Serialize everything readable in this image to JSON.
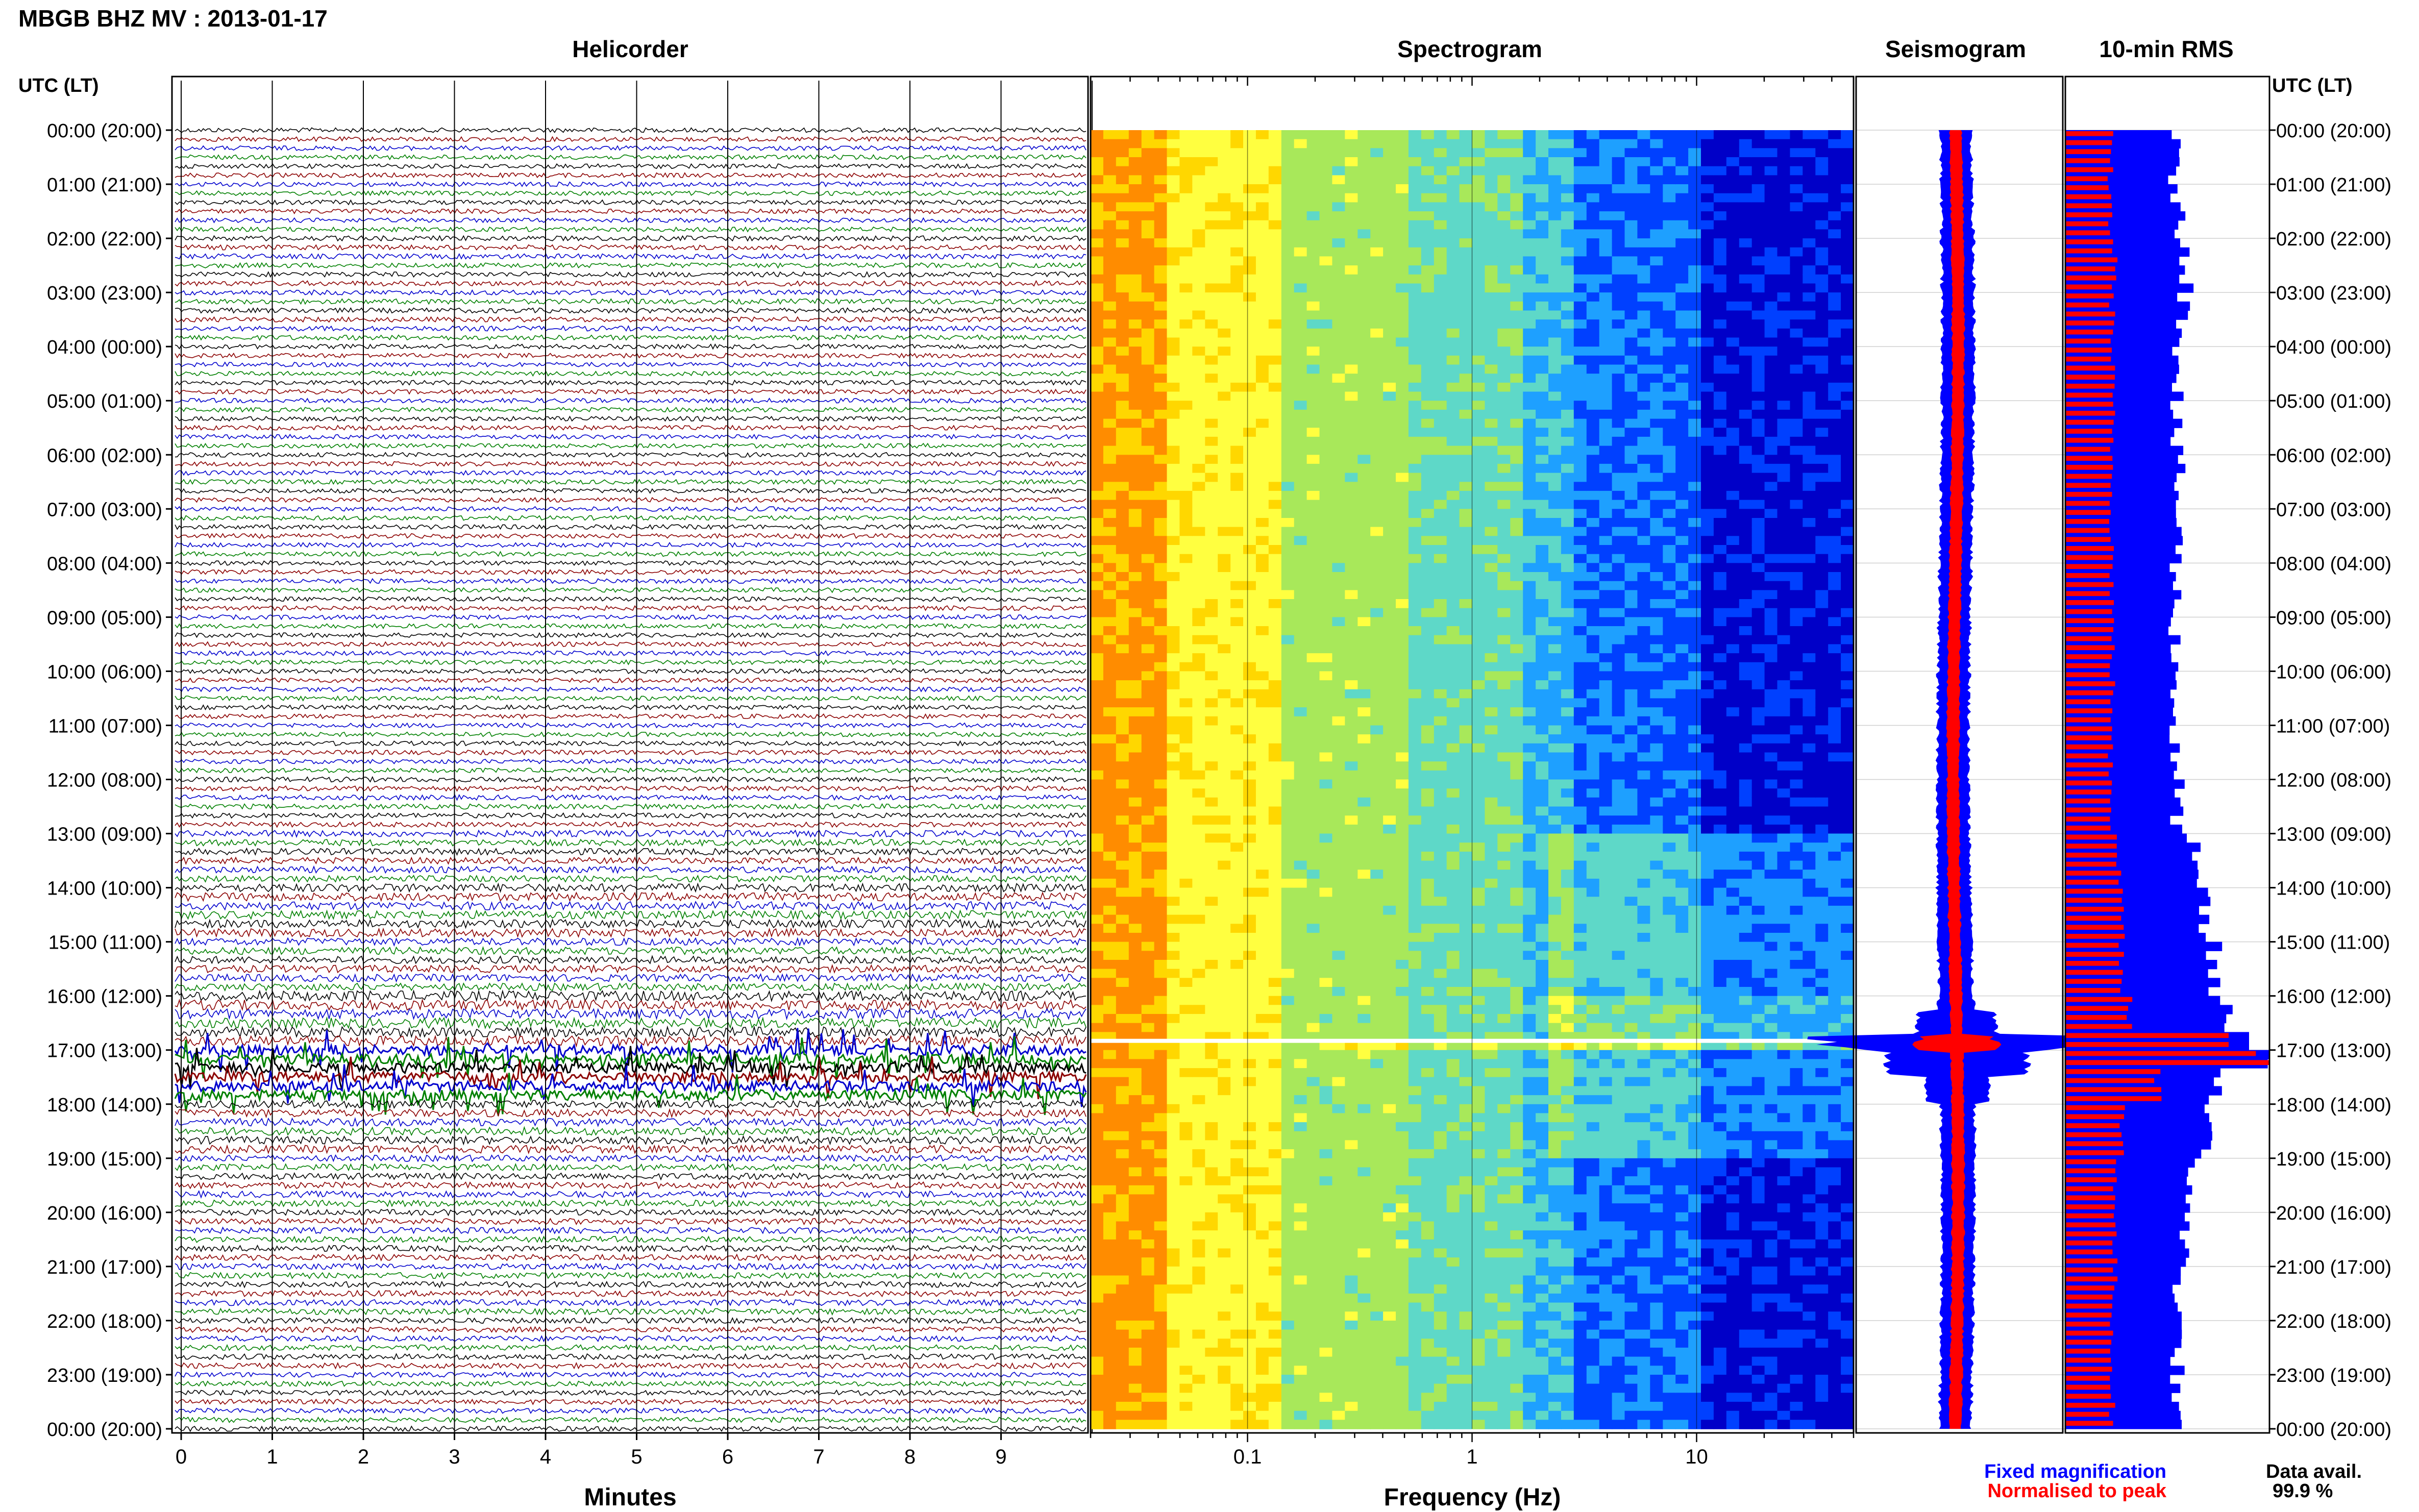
{
  "header": {
    "title": "MBGB BHZ MV : 2013-01-17",
    "left_axis_heading": "UTC (LT)",
    "right_axis_heading": "UTC (LT)"
  },
  "panels": {
    "helicorder_title": "Helicorder",
    "spectrogram_title": "Spectrogram",
    "seismogram_title": "Seismogram",
    "rms_title": "10-min RMS"
  },
  "footer": {
    "minutes_label": "Minutes",
    "frequency_label": "Frequency (Hz)",
    "legend_fixed": "Fixed magnification",
    "legend_normalised": "Normalised to peak",
    "data_avail_label": "Data avail.",
    "data_avail_value": "99.9 %"
  },
  "colors": {
    "fixed_magnification": "#0000ff",
    "normalised_to_peak": "#ff0000",
    "trace_colors": [
      "#000000",
      "#8b0000",
      "#0000cd",
      "#008000"
    ]
  },
  "chart_data": [
    {
      "type": "line",
      "name": "helicorder",
      "title": "Helicorder",
      "xlabel": "Minutes",
      "x_ticks": [
        "0",
        "1",
        "2",
        "3",
        "4",
        "5",
        "6",
        "7",
        "8",
        "9"
      ],
      "xlim": [
        0,
        10
      ],
      "rows_per_hour": 6,
      "hours": 24,
      "y_tick_labels": [
        "00:00 (20:00)",
        "01:00 (21:00)",
        "02:00 (22:00)",
        "03:00 (23:00)",
        "04:00 (00:00)",
        "05:00 (01:00)",
        "06:00 (02:00)",
        "07:00 (03:00)",
        "08:00 (04:00)",
        "09:00 (05:00)",
        "10:00 (06:00)",
        "11:00 (07:00)",
        "12:00 (08:00)",
        "13:00 (09:00)",
        "14:00 (10:00)",
        "15:00 (11:00)",
        "16:00 (12:00)",
        "17:00 (13:00)",
        "18:00 (14:00)",
        "19:00 (15:00)",
        "20:00 (16:00)",
        "21:00 (17:00)",
        "22:00 (18:00)",
        "23:00 (19:00)",
        "00:00 (20:00)"
      ],
      "amplitude_by_hour": [
        1.0,
        1.0,
        1.1,
        1.1,
        1.0,
        1.0,
        1.0,
        1.0,
        1.0,
        1.0,
        1.0,
        1.0,
        1.1,
        1.4,
        1.8,
        1.6,
        2.2,
        6.0,
        1.7,
        1.4,
        1.3,
        1.3,
        1.2,
        1.1
      ]
    },
    {
      "type": "heatmap",
      "name": "spectrogram",
      "title": "Spectrogram",
      "xlabel": "Frequency (Hz)",
      "x_scale": "log",
      "xlim": [
        0.02,
        50
      ],
      "x_tick_labels": [
        "0.1",
        "1",
        "10"
      ],
      "y_range_hours": [
        0,
        24
      ],
      "colormap": [
        "#ff8c00",
        "#ffd700",
        "#ffff40",
        "#a8e85a",
        "#5ed8c8",
        "#1ea0ff",
        "#0040ff",
        "#0000c8"
      ],
      "gap_hour": 16.83
    },
    {
      "type": "line",
      "name": "seismogram",
      "title": "Seismogram",
      "series": [
        {
          "name": "Fixed magnification",
          "color": "#0000ff"
        },
        {
          "name": "Normalised to peak",
          "color": "#ff0000"
        }
      ],
      "y_range_hours": [
        0,
        24
      ],
      "event_hour": 16.9
    },
    {
      "type": "bar",
      "name": "rms",
      "title": "10-min RMS",
      "orientation": "horizontal",
      "bins_per_hour": 6,
      "y_range_hours": [
        0,
        24
      ],
      "series": [
        {
          "name": "Fixed magnification",
          "color": "#0000ff",
          "values_by_hour": [
            0.53,
            0.55,
            0.6,
            0.58,
            0.56,
            0.54,
            0.55,
            0.55,
            0.54,
            0.54,
            0.54,
            0.53,
            0.55,
            0.62,
            0.68,
            0.72,
            0.78,
            1.0,
            0.68,
            0.62,
            0.58,
            0.56,
            0.55,
            0.54
          ]
        },
        {
          "name": "Normalised to peak",
          "color": "#ff0000",
          "values_by_hour": [
            0.22,
            0.22,
            0.24,
            0.23,
            0.23,
            0.23,
            0.23,
            0.23,
            0.23,
            0.23,
            0.23,
            0.22,
            0.23,
            0.26,
            0.28,
            0.28,
            0.32,
            1.0,
            0.28,
            0.25,
            0.24,
            0.24,
            0.23,
            0.23
          ]
        }
      ]
    }
  ]
}
